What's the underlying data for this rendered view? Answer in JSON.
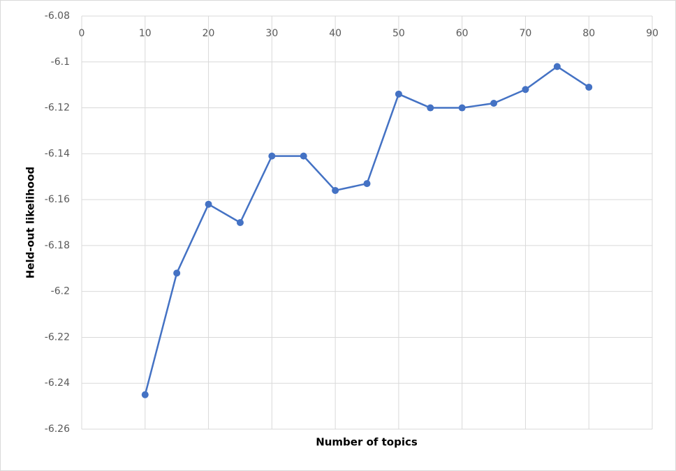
{
  "chart_data": {
    "type": "line",
    "xlabel": "Number of topics",
    "ylabel": "Held-out likelihood",
    "xlim": [
      0,
      90
    ],
    "xticks": [
      0,
      10,
      20,
      30,
      40,
      50,
      60,
      70,
      80,
      90
    ],
    "ylim": [
      -6.26,
      -6.08
    ],
    "yticks": [
      -6.08,
      -6.1,
      -6.12,
      -6.14,
      -6.16,
      -6.18,
      -6.2,
      -6.22,
      -6.24,
      -6.26
    ],
    "grid": true,
    "x": [
      10,
      15,
      20,
      25,
      30,
      35,
      40,
      45,
      50,
      55,
      60,
      65,
      70,
      75,
      80
    ],
    "series": [
      {
        "color": "#4472c4",
        "values": [
          -6.245,
          -6.192,
          -6.162,
          -6.17,
          -6.141,
          -6.141,
          -6.156,
          -6.153,
          -6.114,
          -6.12,
          -6.12,
          -6.118,
          -6.112,
          -6.102,
          -6.111
        ]
      }
    ]
  }
}
